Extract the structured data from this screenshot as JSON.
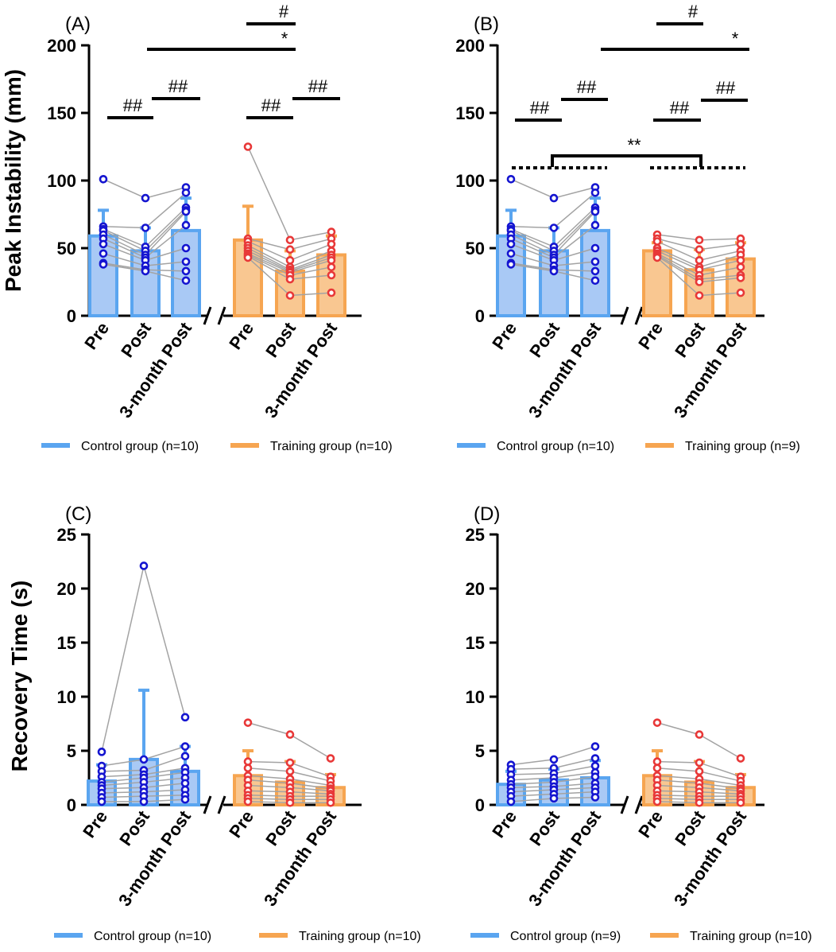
{
  "chart_data": [
    {
      "type": "bar",
      "panel_label": "(A)",
      "ylabel": "Peak Instability (mm)",
      "ylim": [
        0,
        200
      ],
      "yticks": [
        "0",
        "50",
        "100",
        "150",
        "200"
      ],
      "categories": [
        "Pre",
        "Post",
        "3-month Post"
      ],
      "series": [
        {
          "name": "Control group (n=10)",
          "values": [
            59,
            48,
            63
          ],
          "errors": [
            19,
            17,
            24
          ],
          "points": [
            [
              101,
              66,
              64,
              63,
              60,
              57,
              53,
              46,
              39,
              38
            ],
            [
              87,
              65,
              51,
              48,
              45,
              43,
              41,
              37,
              34,
              33
            ],
            [
              95,
              91,
              80,
              78,
              77,
              67,
              50,
              40,
              33,
              26
            ]
          ]
        },
        {
          "name": "Training group (n=10)",
          "values": [
            56,
            33,
            45
          ],
          "errors": [
            25,
            15,
            14
          ],
          "points": [
            [
              125,
              57,
              55,
              52,
              50,
              48,
              46,
              45,
              44,
              43
            ],
            [
              56,
              49,
              41,
              36,
              34,
              33,
              32,
              30,
              27,
              15
            ],
            [
              62,
              57,
              53,
              48,
              45,
              43,
              41,
              36,
              30,
              17
            ]
          ]
        }
      ],
      "annotations": [
        "##",
        "##",
        "##",
        "##",
        "*",
        "#"
      ]
    },
    {
      "type": "bar",
      "panel_label": "(B)",
      "ylabel": "",
      "ylim": [
        0,
        200
      ],
      "yticks": [
        "0",
        "50",
        "100",
        "150",
        "200"
      ],
      "categories": [
        "Pre",
        "Post",
        "3-month Post"
      ],
      "series": [
        {
          "name": "Control group (n=10)",
          "values": [
            59,
            48,
            63
          ],
          "errors": [
            19,
            17,
            24
          ],
          "points": [
            [
              101,
              66,
              64,
              63,
              60,
              57,
              53,
              46,
              39,
              38
            ],
            [
              87,
              65,
              51,
              48,
              45,
              43,
              41,
              37,
              34,
              33
            ],
            [
              95,
              91,
              80,
              78,
              77,
              67,
              50,
              40,
              33,
              26
            ]
          ]
        },
        {
          "name": "Training group (n=9)",
          "values": [
            48,
            34,
            42
          ],
          "errors": [
            6,
            15,
            12
          ],
          "points": [
            [
              60,
              57,
              55,
              50,
              48,
              46,
              45,
              44,
              43
            ],
            [
              56,
              49,
              41,
              36,
              34,
              30,
              27,
              25,
              15
            ],
            [
              57,
              53,
              48,
              45,
              41,
              36,
              30,
              28,
              17
            ]
          ]
        }
      ],
      "annotations": [
        "##",
        "##",
        "##",
        "##",
        "*",
        "#",
        "**"
      ]
    },
    {
      "type": "bar",
      "panel_label": "(C)",
      "ylabel": "Recovery Time (s)",
      "ylim": [
        0,
        25
      ],
      "yticks": [
        "0",
        "5",
        "10",
        "15",
        "20",
        "25"
      ],
      "categories": [
        "Pre",
        "Post",
        "3-month Post"
      ],
      "series": [
        {
          "name": "Control group (n=10)",
          "values": [
            2.2,
            4.2,
            3.1
          ],
          "errors": [
            1.5,
            6.4,
            2.3
          ],
          "points": [
            [
              4.9,
              3.6,
              3.1,
              2.6,
              2.1,
              1.8,
              1.5,
              1.1,
              0.7,
              0.3
            ],
            [
              22.1,
              4.2,
              3.2,
              2.8,
              2.5,
              2.1,
              1.6,
              1.2,
              0.8,
              0.3
            ],
            [
              8.1,
              5.4,
              4.5,
              3.4,
              3.0,
              2.5,
              2.0,
              1.4,
              0.9,
              0.5
            ]
          ]
        },
        {
          "name": "Training group (n=10)",
          "values": [
            2.7,
            2.1,
            1.6
          ],
          "errors": [
            2.3,
            1.9,
            1.2
          ],
          "points": [
            [
              7.6,
              4.0,
              3.4,
              2.7,
              2.3,
              1.8,
              1.3,
              0.9,
              0.6,
              0.3
            ],
            [
              6.5,
              3.9,
              3.1,
              2.4,
              2.0,
              1.6,
              1.2,
              0.8,
              0.5,
              0.2
            ],
            [
              4.3,
              2.6,
              2.2,
              1.8,
              1.5,
              1.3,
              1.0,
              0.8,
              0.5,
              0.2
            ]
          ]
        }
      ],
      "annotations": []
    },
    {
      "type": "bar",
      "panel_label": "(D)",
      "ylabel": "",
      "ylim": [
        0,
        25
      ],
      "yticks": [
        "0",
        "5",
        "10",
        "15",
        "20",
        "25"
      ],
      "categories": [
        "Pre",
        "Post",
        "3-month Post"
      ],
      "series": [
        {
          "name": "Control group (n=9)",
          "values": [
            1.9,
            2.3,
            2.5
          ],
          "errors": [
            1.2,
            1.0,
            1.6
          ],
          "points": [
            [
              3.7,
              3.3,
              2.8,
              2.3,
              1.9,
              1.6,
              1.2,
              0.8,
              0.3
            ],
            [
              4.2,
              3.4,
              2.9,
              2.5,
              2.1,
              1.7,
              1.4,
              1.0,
              0.6
            ],
            [
              5.4,
              4.3,
              3.6,
              3.0,
              2.6,
              2.0,
              1.6,
              1.2,
              0.7
            ]
          ]
        },
        {
          "name": "Training group (n=10)",
          "values": [
            2.7,
            2.1,
            1.6
          ],
          "errors": [
            2.3,
            1.9,
            1.2
          ],
          "points": [
            [
              7.6,
              4.0,
              3.4,
              2.7,
              2.3,
              1.8,
              1.3,
              0.9,
              0.6,
              0.3
            ],
            [
              6.5,
              3.9,
              3.1,
              2.4,
              2.0,
              1.6,
              1.2,
              0.8,
              0.5,
              0.2
            ],
            [
              4.3,
              2.6,
              2.2,
              1.8,
              1.5,
              1.3,
              1.0,
              0.8,
              0.5,
              0.2
            ]
          ]
        }
      ],
      "annotations": []
    }
  ],
  "colors": {
    "control_fill": "#a9c9f5",
    "control_stroke": "#5aa5f0",
    "control_points": "#1515d0",
    "training_fill": "#f9c791",
    "training_stroke": "#f6a551",
    "training_points": "#e83838",
    "connector": "#a3a3a3",
    "axis": "#000000"
  }
}
